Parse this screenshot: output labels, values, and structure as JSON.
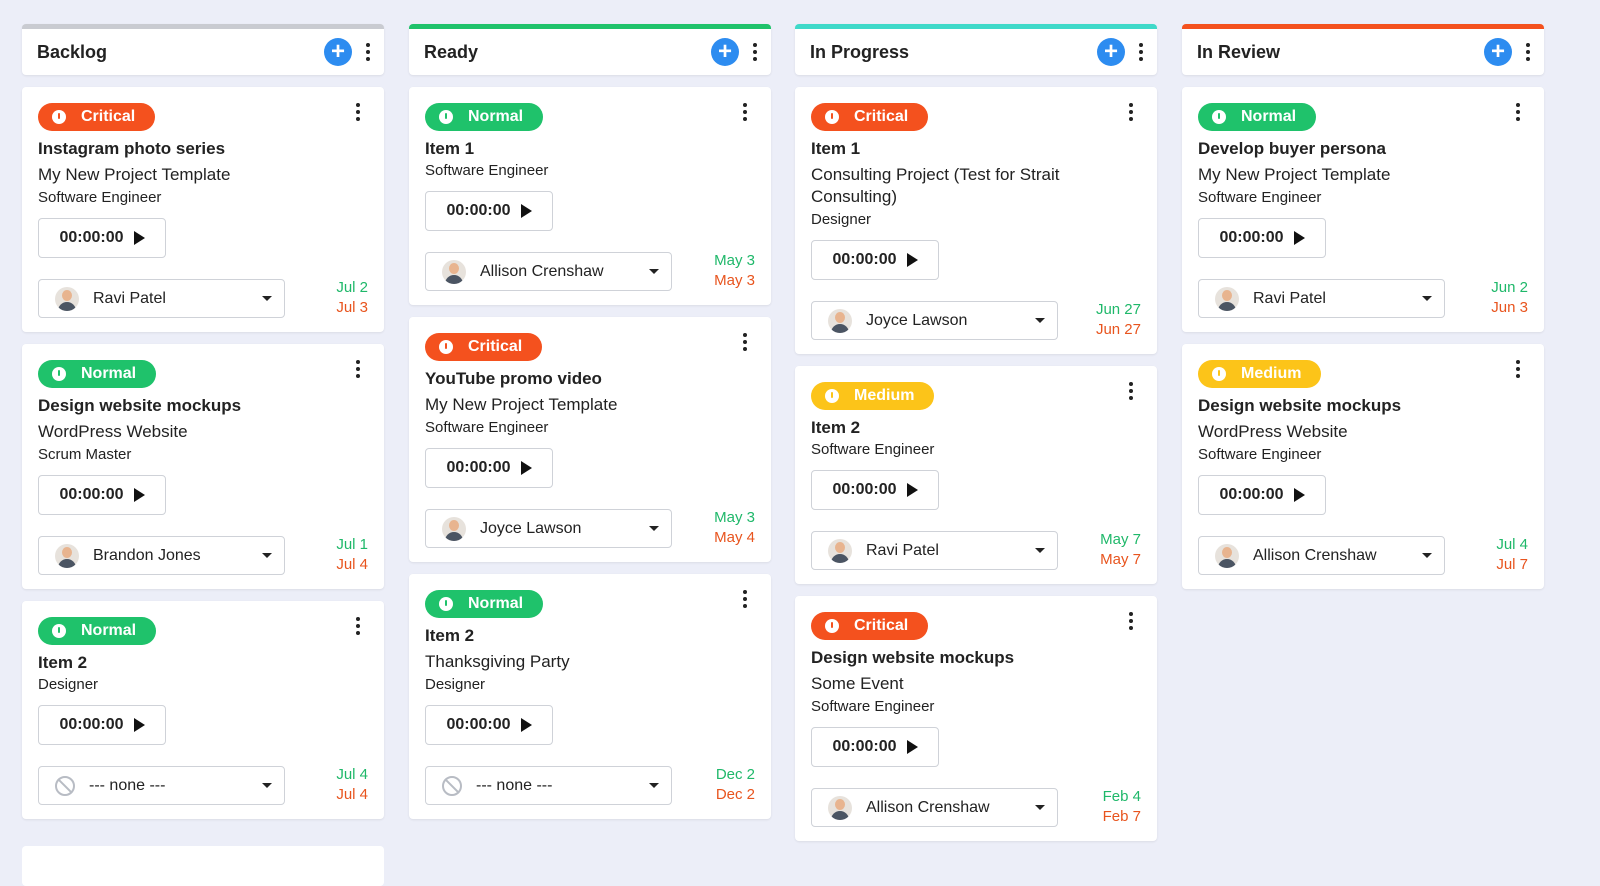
{
  "columns": [
    {
      "title": "Backlog",
      "color": "#c9cbd1",
      "cards": [
        {
          "priority": {
            "label": "Critical",
            "color": "#f4511e"
          },
          "title": "Instagram photo series",
          "project": "My New Project Template",
          "role": "Software Engineer",
          "timer": "00:00:00",
          "assignee": "Ravi Patel",
          "start": "Jul 2",
          "end": "Jul 3"
        },
        {
          "priority": {
            "label": "Normal",
            "color": "#1fc26b"
          },
          "title": "Design website mockups",
          "project": "WordPress Website",
          "role": "Scrum Master",
          "timer": "00:00:00",
          "assignee": "Brandon Jones",
          "start": "Jul 1",
          "end": "Jul 4"
        },
        {
          "priority": {
            "label": "Normal",
            "color": "#1fc26b"
          },
          "title": "Item 2",
          "role": "Designer",
          "timer": "00:00:00",
          "assignee": "--- none ---",
          "start": "Jul 4",
          "end": "Jul 4"
        }
      ]
    },
    {
      "title": "Ready",
      "color": "#1fc26b",
      "cards": [
        {
          "priority": {
            "label": "Normal",
            "color": "#1fc26b"
          },
          "title": "Item 1",
          "role": "Software Engineer",
          "timer": "00:00:00",
          "assignee": "Allison Crenshaw",
          "start": "May 3",
          "end": "May 3"
        },
        {
          "priority": {
            "label": "Critical",
            "color": "#f4511e"
          },
          "title": "YouTube promo video",
          "project": "My New Project Template",
          "role": "Software Engineer",
          "timer": "00:00:00",
          "assignee": "Joyce Lawson",
          "start": "May 3",
          "end": "May 4"
        },
        {
          "priority": {
            "label": "Normal",
            "color": "#1fc26b"
          },
          "title": "Item 2",
          "project": "Thanksgiving Party",
          "role": "Designer",
          "timer": "00:00:00",
          "assignee": "--- none ---",
          "start": "Dec 2",
          "end": "Dec 2"
        }
      ]
    },
    {
      "title": "In Progress",
      "color": "#3fd9c9",
      "cards": [
        {
          "priority": {
            "label": "Critical",
            "color": "#f4511e"
          },
          "title": "Item 1",
          "project": "Consulting Project (Test for Strait Consulting)",
          "role": "Designer",
          "timer": "00:00:00",
          "assignee": "Joyce Lawson",
          "start": "Jun 27",
          "end": "Jun 27"
        },
        {
          "priority": {
            "label": "Medium",
            "color": "#fcc419"
          },
          "title": "Item 2",
          "role": "Software Engineer",
          "timer": "00:00:00",
          "assignee": "Ravi Patel",
          "start": "May 7",
          "end": "May 7"
        },
        {
          "priority": {
            "label": "Critical",
            "color": "#f4511e"
          },
          "title": "Design website mockups",
          "project": "Some Event",
          "role": "Software Engineer",
          "timer": "00:00:00",
          "assignee": "Allison Crenshaw",
          "start": "Feb 4",
          "end": "Feb 7"
        }
      ]
    },
    {
      "title": "In Review",
      "color": "#f4511e",
      "cards": [
        {
          "priority": {
            "label": "Normal",
            "color": "#1fc26b"
          },
          "title": "Develop buyer persona",
          "project": "My New Project Template",
          "role": "Software Engineer",
          "timer": "00:00:00",
          "assignee": "Ravi Patel",
          "start": "Jun 2",
          "end": "Jun 3"
        },
        {
          "priority": {
            "label": "Medium",
            "color": "#fcc419"
          },
          "title": "Design website mockups",
          "project": "WordPress Website",
          "role": "Software Engineer",
          "timer": "00:00:00",
          "assignee": "Allison Crenshaw",
          "start": "Jul 4",
          "end": "Jul 7"
        }
      ]
    }
  ]
}
